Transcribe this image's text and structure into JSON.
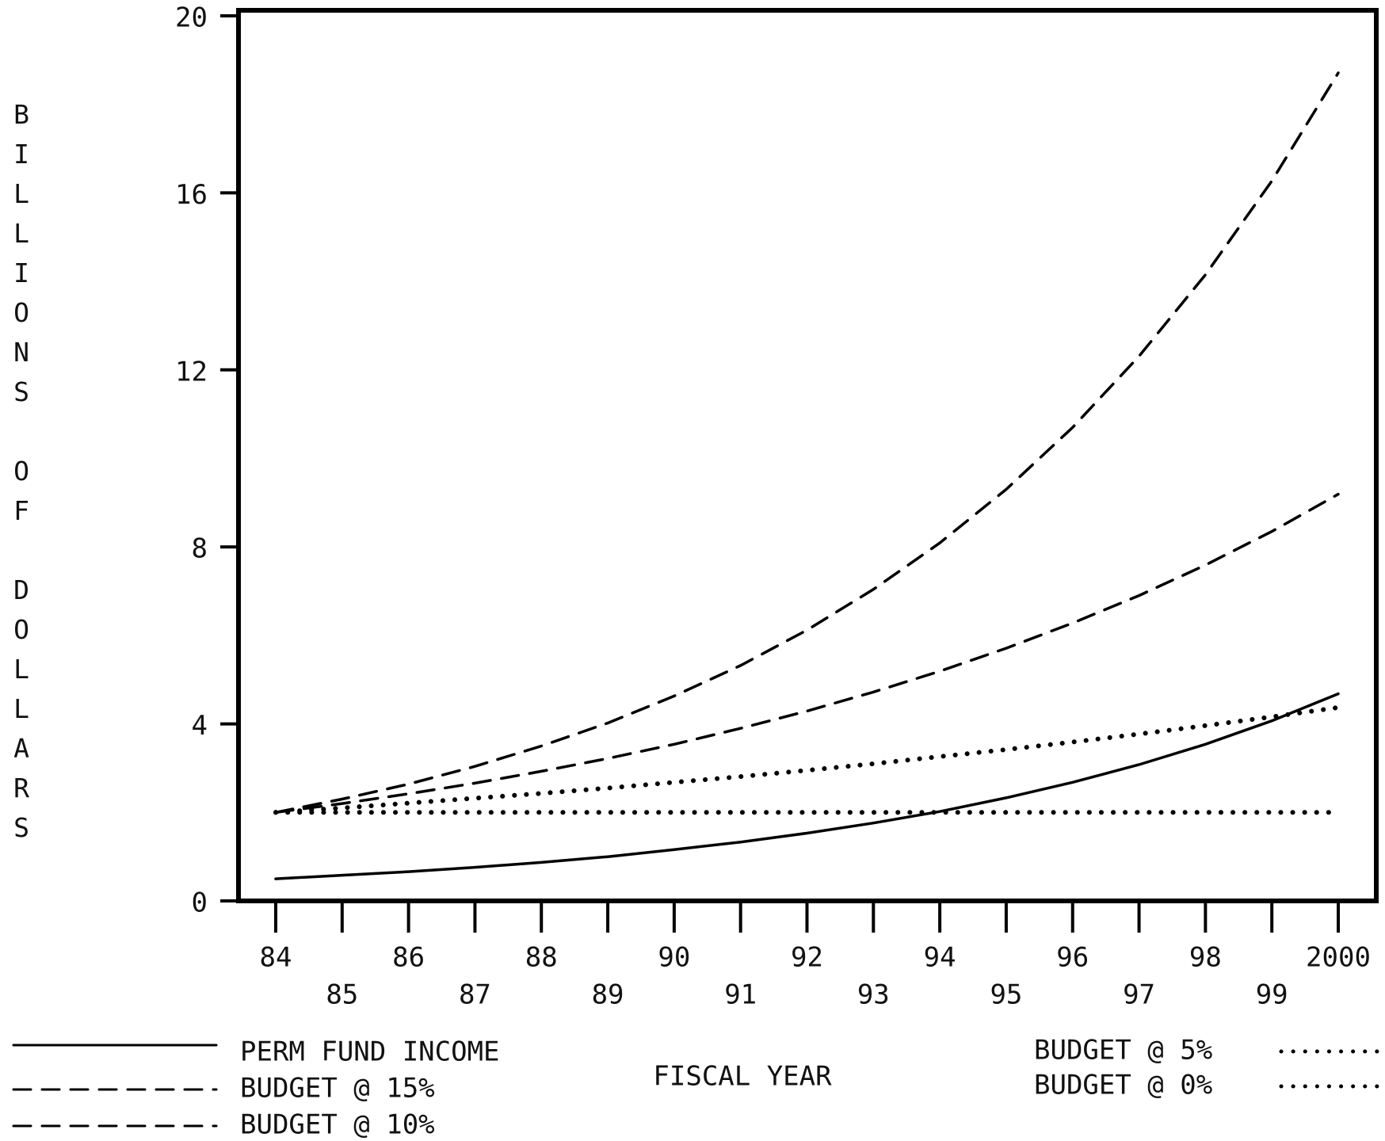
{
  "chart_data": {
    "type": "line",
    "x_label": "FISCAL YEAR",
    "y_label": "BILLIONS OF DOLLARS",
    "categories": [
      "84",
      "85",
      "86",
      "87",
      "88",
      "89",
      "90",
      "91",
      "92",
      "93",
      "94",
      "95",
      "96",
      "97",
      "98",
      "99",
      "2000"
    ],
    "series": [
      {
        "name": "PERM FUND INCOME",
        "color": "#000000",
        "style": "solid",
        "values": [
          0.5,
          0.58,
          0.66,
          0.76,
          0.87,
          1.0,
          1.16,
          1.33,
          1.53,
          1.76,
          2.02,
          2.33,
          2.68,
          3.08,
          3.54,
          4.07,
          4.68
        ]
      },
      {
        "name": "BUDGET @ 15%",
        "color": "#000000",
        "style": "dashed",
        "values": [
          2.0,
          2.3,
          2.64,
          3.04,
          3.5,
          4.02,
          4.63,
          5.32,
          6.12,
          7.04,
          8.09,
          9.3,
          10.7,
          12.31,
          14.15,
          16.27,
          18.71
        ]
      },
      {
        "name": "BUDGET @ 10%",
        "color": "#000000",
        "style": "dashed",
        "values": [
          2.0,
          2.2,
          2.42,
          2.66,
          2.93,
          3.22,
          3.54,
          3.9,
          4.29,
          4.72,
          5.19,
          5.71,
          6.28,
          6.9,
          7.59,
          8.35,
          9.19
        ]
      },
      {
        "name": "BUDGET @ 5%",
        "color": "#000000",
        "style": "dotted",
        "values": [
          2.0,
          2.1,
          2.21,
          2.32,
          2.43,
          2.55,
          2.68,
          2.81,
          2.95,
          3.1,
          3.26,
          3.42,
          3.59,
          3.77,
          3.96,
          4.16,
          4.37
        ]
      },
      {
        "name": "BUDGET @ 0%",
        "color": "#000000",
        "style": "dotted",
        "values": [
          2.0,
          2.0,
          2.0,
          2.0,
          2.0,
          2.0,
          2.0,
          2.0,
          2.0,
          2.0,
          2.0,
          2.0,
          2.0,
          2.0,
          2.0,
          2.0,
          2.0
        ]
      }
    ],
    "ylim": [
      0,
      20
    ],
    "yticks": [
      0,
      4,
      8,
      12,
      16,
      20
    ],
    "grid": false
  }
}
